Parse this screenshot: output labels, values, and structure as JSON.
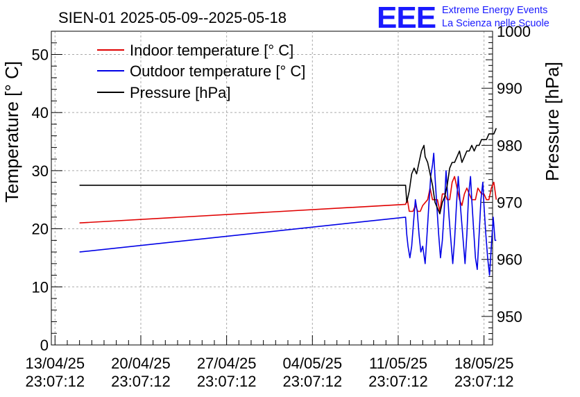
{
  "colors": {
    "indoor": "#e00000",
    "outdoor": "#0000e6",
    "pressure": "#000000",
    "grid": "#aaaaaa",
    "logo": "#1a1aff"
  },
  "logo": {
    "mark": "EEE",
    "line1": "Extreme Energy Events",
    "line2": "La Scienza nelle Scuole"
  },
  "chart_data": {
    "type": "line",
    "title": "SIEN-01 2025-05-09--2025-05-18",
    "ylabel": "Temperature [° C]",
    "y2label": "Pressure [hPa]",
    "ylim": [
      0,
      54
    ],
    "y2lim": [
      945,
      1000
    ],
    "xlim_days": [
      -0.3,
      35.7
    ],
    "x_ticks": [
      {
        "day": 0,
        "date": "13/04/25",
        "time": "23:07:12"
      },
      {
        "day": 7,
        "date": "20/04/25",
        "time": "23:07:12"
      },
      {
        "day": 14,
        "date": "27/04/25",
        "time": "23:07:12"
      },
      {
        "day": 21,
        "date": "04/05/25",
        "time": "23:07:12"
      },
      {
        "day": 28,
        "date": "11/05/25",
        "time": "23:07:12"
      },
      {
        "day": 35,
        "date": "18/05/25",
        "time": "23:07:12"
      }
    ],
    "y_ticks": [
      0,
      10,
      20,
      30,
      40,
      50
    ],
    "y2_ticks": [
      950,
      960,
      970,
      980,
      990,
      1000
    ],
    "legend": [
      "Indoor temperature [° C]",
      "Outdoor temperature [° C]",
      "Pressure [hPa]"
    ],
    "series": [
      {
        "name": "Indoor temperature [° C]",
        "key": "indoor",
        "axis": "left",
        "points": [
          [
            2,
            21
          ],
          [
            28.6,
            24.2
          ],
          [
            28.75,
            25
          ],
          [
            28.9,
            23
          ],
          [
            29.2,
            23
          ],
          [
            29.4,
            24
          ],
          [
            29.6,
            23
          ],
          [
            29.8,
            23
          ],
          [
            30,
            24
          ],
          [
            30.4,
            25
          ],
          [
            30.6,
            27
          ],
          [
            30.8,
            25
          ],
          [
            31.2,
            25
          ],
          [
            31.4,
            23
          ],
          [
            31.6,
            26
          ],
          [
            31.8,
            26
          ],
          [
            32,
            25
          ],
          [
            32.2,
            25
          ],
          [
            32.4,
            28
          ],
          [
            32.6,
            29
          ],
          [
            32.8,
            27
          ],
          [
            33,
            25
          ],
          [
            33.2,
            24
          ],
          [
            33.4,
            26
          ],
          [
            33.6,
            27
          ],
          [
            33.8,
            26
          ],
          [
            34,
            25
          ],
          [
            34.3,
            25
          ],
          [
            34.5,
            27
          ],
          [
            34.8,
            26
          ],
          [
            35,
            26
          ],
          [
            35.2,
            25
          ],
          [
            35.4,
            25
          ],
          [
            35.6,
            27
          ],
          [
            35.8,
            28
          ],
          [
            36,
            25
          ]
        ]
      },
      {
        "name": "Outdoor temperature [° C]",
        "key": "outdoor",
        "axis": "left",
        "points": [
          [
            2,
            16
          ],
          [
            28.6,
            22
          ],
          [
            28.7,
            19
          ],
          [
            28.8,
            17
          ],
          [
            28.95,
            15
          ],
          [
            29.1,
            17
          ],
          [
            29.25,
            21
          ],
          [
            29.4,
            25
          ],
          [
            29.55,
            23
          ],
          [
            29.7,
            19
          ],
          [
            29.85,
            16
          ],
          [
            30,
            17
          ],
          [
            30.2,
            14
          ],
          [
            30.35,
            19
          ],
          [
            30.5,
            24
          ],
          [
            30.65,
            29
          ],
          [
            30.8,
            31
          ],
          [
            30.9,
            33
          ],
          [
            31,
            29
          ],
          [
            31.15,
            24
          ],
          [
            31.3,
            19
          ],
          [
            31.45,
            15
          ],
          [
            31.6,
            18
          ],
          [
            31.75,
            23
          ],
          [
            31.9,
            30
          ],
          [
            32,
            27
          ],
          [
            32.15,
            22
          ],
          [
            32.3,
            18
          ],
          [
            32.45,
            14
          ],
          [
            32.6,
            18
          ],
          [
            32.75,
            24
          ],
          [
            32.9,
            29
          ],
          [
            33,
            26
          ],
          [
            33.15,
            22
          ],
          [
            33.3,
            18
          ],
          [
            33.45,
            14
          ],
          [
            33.6,
            19
          ],
          [
            33.75,
            26
          ],
          [
            33.9,
            29
          ],
          [
            34,
            25
          ],
          [
            34.15,
            20
          ],
          [
            34.3,
            15
          ],
          [
            34.45,
            13
          ],
          [
            34.6,
            19
          ],
          [
            34.75,
            25
          ],
          [
            34.9,
            28
          ],
          [
            35,
            24
          ],
          [
            35.15,
            19
          ],
          [
            35.3,
            15
          ],
          [
            35.45,
            12
          ],
          [
            35.6,
            17
          ],
          [
            35.75,
            22
          ],
          [
            35.9,
            18
          ],
          [
            36,
            18
          ]
        ]
      },
      {
        "name": "Pressure [hPa]",
        "key": "pressure",
        "axis": "right",
        "points": [
          [
            2,
            973
          ],
          [
            28.6,
            973
          ],
          [
            28.7,
            970
          ],
          [
            28.9,
            972
          ],
          [
            29.1,
            975
          ],
          [
            29.3,
            976
          ],
          [
            29.5,
            975
          ],
          [
            29.7,
            977
          ],
          [
            29.9,
            979
          ],
          [
            30.1,
            980
          ],
          [
            30.2,
            978
          ],
          [
            30.4,
            977
          ],
          [
            30.6,
            975
          ],
          [
            30.8,
            973
          ],
          [
            31,
            970
          ],
          [
            31.2,
            969
          ],
          [
            31.4,
            968
          ],
          [
            31.6,
            970
          ],
          [
            31.8,
            971
          ],
          [
            32,
            973
          ],
          [
            32.2,
            976
          ],
          [
            32.4,
            977
          ],
          [
            32.6,
            977
          ],
          [
            32.8,
            978
          ],
          [
            33,
            979
          ],
          [
            33.2,
            977
          ],
          [
            33.4,
            978
          ],
          [
            33.6,
            979
          ],
          [
            33.8,
            979
          ],
          [
            34,
            980
          ],
          [
            34.2,
            979
          ],
          [
            34.4,
            980
          ],
          [
            34.6,
            980
          ],
          [
            34.8,
            981
          ],
          [
            35,
            981
          ],
          [
            35.2,
            981
          ],
          [
            35.4,
            982
          ],
          [
            35.6,
            982
          ],
          [
            35.8,
            982
          ],
          [
            36,
            983
          ]
        ]
      }
    ]
  }
}
